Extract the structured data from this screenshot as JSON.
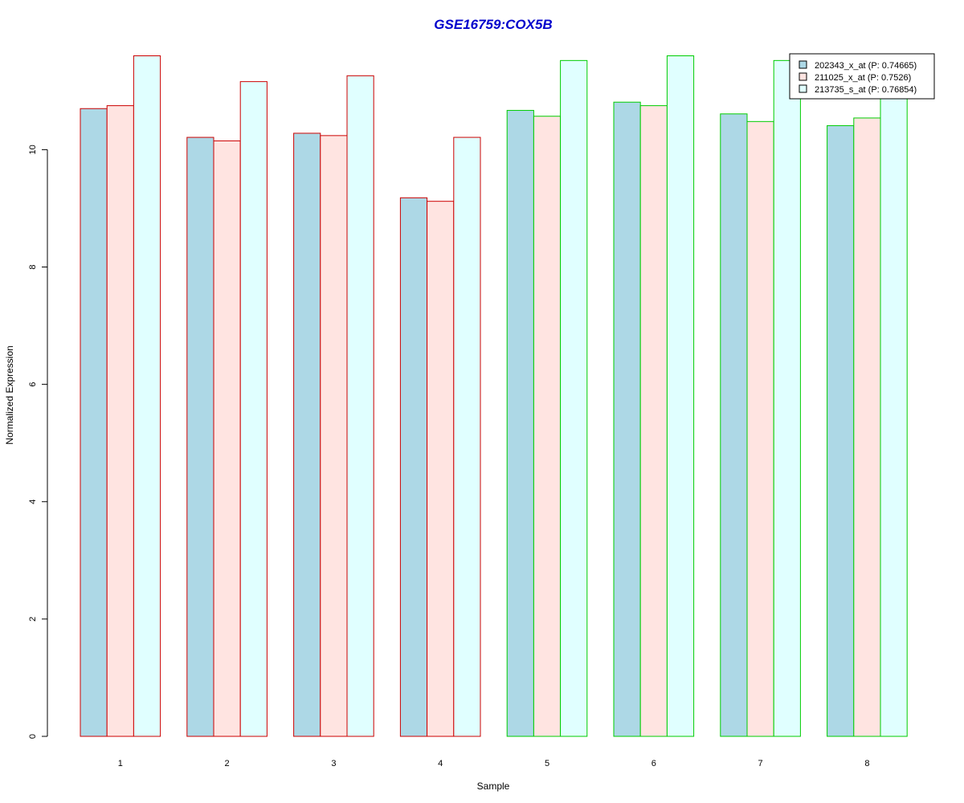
{
  "chart_data": {
    "type": "bar",
    "title": "GSE16759:COX5B",
    "xlabel": "Sample",
    "ylabel": "Normalized Expression",
    "categories": [
      "1",
      "2",
      "3",
      "4",
      "5",
      "6",
      "7",
      "8"
    ],
    "ylim": [
      0,
      11.73
    ],
    "yticks": [
      0,
      2,
      4,
      6,
      8,
      10
    ],
    "group_colors": [
      "#cc0000",
      "#cc0000",
      "#cc0000",
      "#cc0000",
      "#00cc00",
      "#00cc00",
      "#00cc00",
      "#00cc00"
    ],
    "series": [
      {
        "name": "202343_x_at (P: 0.74665)",
        "color": "#add8e6",
        "values": [
          10.7,
          10.21,
          10.28,
          9.18,
          10.67,
          10.81,
          10.61,
          10.41
        ]
      },
      {
        "name": "211025_x_at (P: 0.7526)",
        "color": "#ffe4e1",
        "values": [
          10.75,
          10.15,
          10.24,
          9.12,
          10.57,
          10.75,
          10.48,
          10.54
        ]
      },
      {
        "name": "213735_s_at (P: 0.76854)",
        "color": "#e0ffff",
        "values": [
          11.6,
          11.16,
          11.26,
          10.21,
          11.52,
          11.6,
          11.52,
          11.0
        ]
      }
    ],
    "legend_position": "top-right",
    "grid": false
  },
  "colors": {
    "title": "#0000cc",
    "axis": "#000000"
  }
}
